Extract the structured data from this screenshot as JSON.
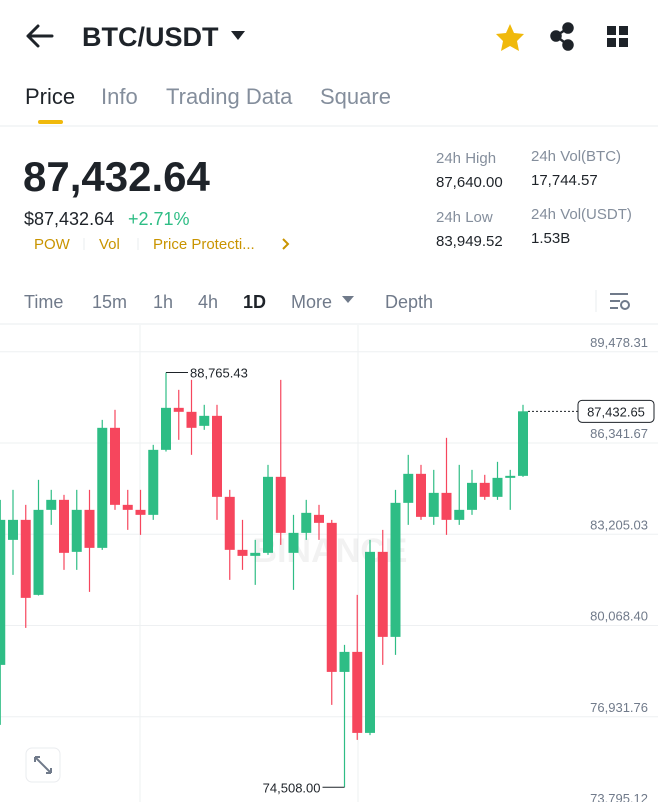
{
  "header": {
    "title": "BTC/USDT"
  },
  "tabs": [
    "Price",
    "Info",
    "Trading Data",
    "Square"
  ],
  "ticker": {
    "last_price": "87,432.64",
    "fiat_price": "$87,432.64",
    "change": "+2.71%",
    "tags": [
      "POW",
      "Vol",
      "Price Protecti..."
    ],
    "stats": [
      {
        "label": "24h High",
        "value": "87,640.00"
      },
      {
        "label": "24h Low",
        "value": "83,949.52"
      },
      {
        "label": "24h Vol(BTC)",
        "value": "17,744.57"
      },
      {
        "label": "24h Vol(USDT)",
        "value": "1.53B"
      }
    ]
  },
  "intervals": [
    "Time",
    "15m",
    "1h",
    "4h",
    "1D",
    "More",
    "Depth"
  ],
  "chart_data": {
    "type": "candlestick",
    "watermark": "BINANCE",
    "up_color": "#2ebd85",
    "down_color": "#f6465d",
    "open": [
      78715,
      83013,
      83701,
      81122,
      84045,
      84389,
      82601,
      84045,
      82738,
      86865,
      84217,
      84045,
      83873,
      86108,
      87552,
      87415,
      86933,
      87277,
      84492,
      82670,
      82463,
      82567,
      85180,
      82567,
      83254,
      83873,
      83598,
      78474,
      79162,
      76377,
      82601,
      79678,
      84286,
      85283,
      83804,
      84629,
      83701,
      84045,
      84973,
      84492,
      85145,
      85214
    ],
    "high": [
      84389,
      84733,
      84217,
      85077,
      84733,
      84561,
      84733,
      84733,
      87140,
      87484,
      84733,
      84733,
      86280,
      88765.43,
      88171,
      88515,
      87656,
      87656,
      84733,
      83701,
      83013,
      85592,
      88515,
      83873,
      84389,
      84217,
      83701,
      79403,
      81122,
      83013,
      83357,
      84733,
      85936,
      85592,
      85420,
      86521,
      85592,
      85420,
      85249,
      85696,
      85420,
      87656
    ],
    "low": [
      76652,
      81810,
      79987,
      81100,
      83529,
      81982,
      81982,
      81225,
      82670,
      84045,
      83357,
      83185,
      83701,
      86050,
      86452,
      85936,
      86796,
      83701,
      81638,
      81982,
      81466,
      82498,
      82841,
      81294,
      83013,
      83013,
      77340,
      74508.0,
      76137,
      76300,
      78715,
      79059,
      83529,
      83701,
      83529,
      83185,
      83529,
      83873,
      84389,
      84389,
      84045,
      85180
    ],
    "close": [
      83701,
      83701,
      81019,
      84045,
      84389,
      82567,
      84045,
      82738,
      86865,
      84217,
      84045,
      83873,
      86108,
      87552,
      87415,
      86865,
      87277,
      84492,
      82670,
      82463,
      82567,
      85180,
      83254,
      83254,
      83942,
      83598,
      78474,
      79162,
      76377,
      82601,
      79678,
      84286,
      85283,
      83804,
      84629,
      83701,
      84045,
      84973,
      84492,
      85145,
      85214,
      87432.65
    ],
    "ylim": [
      73795.12,
      90400
    ],
    "yticks": [
      {
        "value": 89478.31,
        "label": "89,478.31"
      },
      {
        "value": 86341.67,
        "label": "86,341.67"
      },
      {
        "value": 83205.03,
        "label": "83,205.03"
      },
      {
        "value": 80068.4,
        "label": "80,068.40"
      },
      {
        "value": 76931.76,
        "label": "76,931.76"
      },
      {
        "value": 73795.12,
        "label": "73,795.12"
      }
    ],
    "annotations": {
      "high": {
        "value": 88765.43,
        "label": "88,765.43"
      },
      "low": {
        "value": 74508.0,
        "label": "74,508.00"
      },
      "last": {
        "value": 87432.65,
        "label": "87,432.65"
      }
    }
  }
}
